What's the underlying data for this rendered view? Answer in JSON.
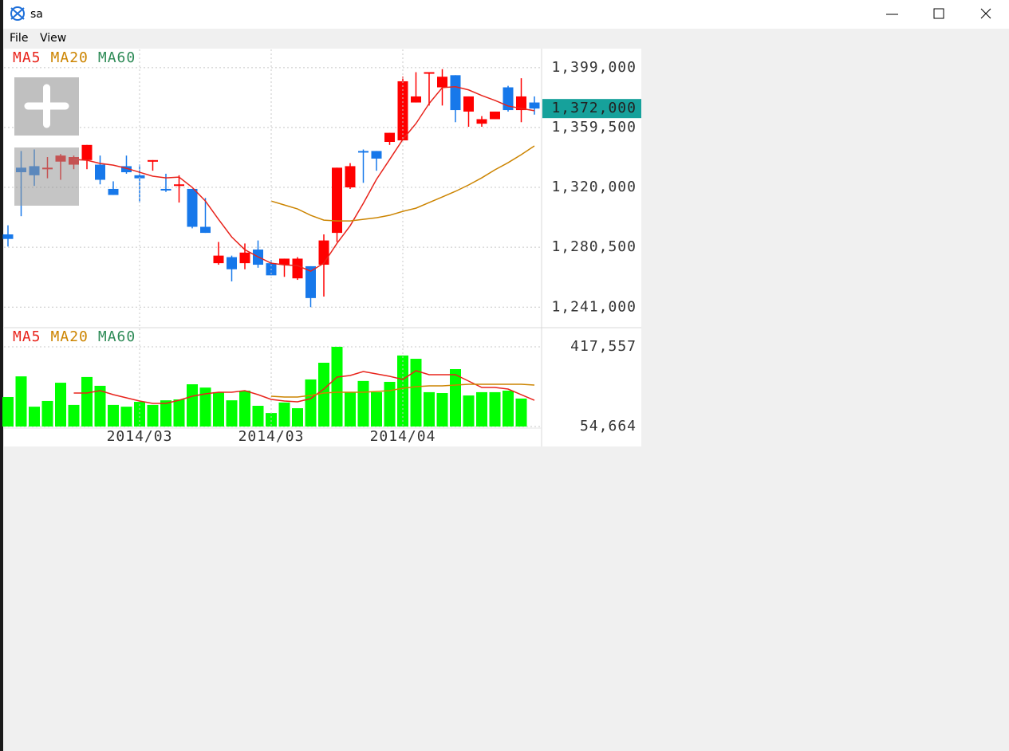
{
  "window": {
    "title": "sa",
    "menu": [
      "File",
      "View"
    ]
  },
  "chart_data": [
    {
      "type": "candlestick",
      "open": [
        1289000,
        1333000,
        1334000,
        1332000,
        1337000,
        1335000,
        1338000,
        1335000,
        1319000,
        1334000,
        1328000,
        1337000,
        1319000,
        1321000,
        1319000,
        1294000,
        1270000,
        1274000,
        1270000,
        1279000,
        1270000,
        1269000,
        1260000,
        1268000,
        1269000,
        1290000,
        1320000,
        1344000,
        1344000,
        1350000,
        1351000,
        1376000,
        1395000,
        1386000,
        1394000,
        1370000,
        1362000,
        1365000,
        1386000,
        1371000,
        1376000
      ],
      "high": [
        1295000,
        1344000,
        1345000,
        1340000,
        1342000,
        1341000,
        1348000,
        1341000,
        1324000,
        1341000,
        1335000,
        1338000,
        1329000,
        1328000,
        1319000,
        1313000,
        1284000,
        1275000,
        1283000,
        1285000,
        1272000,
        1273000,
        1274000,
        1268000,
        1289000,
        1333000,
        1336000,
        1345000,
        1344000,
        1356000,
        1393000,
        1396000,
        1396000,
        1398000,
        1394000,
        1380000,
        1367000,
        1370000,
        1387000,
        1392000,
        1380000
      ],
      "low": [
        1281000,
        1301000,
        1321000,
        1326000,
        1325000,
        1332000,
        1332000,
        1322000,
        1315000,
        1329000,
        1310000,
        1331000,
        1317000,
        1310000,
        1293000,
        1290000,
        1269000,
        1258000,
        1266000,
        1267000,
        1262000,
        1261000,
        1259000,
        1241000,
        1248000,
        1284000,
        1319000,
        1323000,
        1331000,
        1348000,
        1351000,
        1376000,
        1374000,
        1374000,
        1363000,
        1360000,
        1360000,
        1365000,
        1370000,
        1363000,
        1368000
      ],
      "close": [
        1286000,
        1330000,
        1328000,
        1333000,
        1341000,
        1340000,
        1348000,
        1325000,
        1315000,
        1330000,
        1326000,
        1338000,
        1318000,
        1322000,
        1294000,
        1290000,
        1275000,
        1266000,
        1277000,
        1269000,
        1262000,
        1273000,
        1273000,
        1247000,
        1285000,
        1333000,
        1334000,
        1343000,
        1339000,
        1356000,
        1390000,
        1380000,
        1396000,
        1393000,
        1371000,
        1380000,
        1365000,
        1370000,
        1371000,
        1380000,
        1372000
      ],
      "up_color": "#ff0000",
      "down_color": "#1778ea",
      "series": [
        {
          "name": "MA5",
          "color": "#e8231b",
          "values": [
            null,
            null,
            null,
            null,
            null,
            1338400,
            1337900,
            1335800,
            1334700,
            1332600,
            1330000,
            1327400,
            1326300,
            1326800,
            1320000,
            1311000,
            1298900,
            1287300,
            1278900,
            1274200,
            1270000,
            1268900,
            1268400,
            1264700,
            1270000,
            1283100,
            1294700,
            1309500,
            1325300,
            1338400,
            1351600,
            1362100,
            1375300,
            1385800,
            1386400,
            1384300,
            1380600,
            1377400,
            1373700,
            1372100,
            1370600
          ]
        },
        {
          "name": "MA20",
          "color": "#cc8400",
          "values": [
            null,
            null,
            null,
            null,
            null,
            null,
            null,
            null,
            null,
            null,
            null,
            null,
            null,
            null,
            null,
            null,
            null,
            null,
            null,
            null,
            1311000,
            1308400,
            1305800,
            1301600,
            1298400,
            1297900,
            1297900,
            1298900,
            1300000,
            1301600,
            1304200,
            1306300,
            1310000,
            1313700,
            1317400,
            1321600,
            1326300,
            1331600,
            1336300,
            1341600,
            1347400
          ]
        },
        {
          "name": "MA60",
          "color": "#2e8b57",
          "values": [
            null,
            null,
            null,
            null,
            null,
            null,
            null,
            null,
            null,
            null,
            null,
            null,
            null,
            null,
            null,
            null,
            null,
            null,
            null,
            null,
            null,
            null,
            null,
            null,
            null,
            null,
            null,
            null,
            null,
            null,
            null,
            null,
            null,
            null,
            null,
            null,
            null,
            null,
            null,
            null,
            null
          ]
        }
      ],
      "ylim": [
        1228000,
        1411000
      ],
      "yticks": [
        {
          "value": 1241000,
          "label": "1,241,000"
        },
        {
          "value": 1280500,
          "label": "1,280,500"
        },
        {
          "value": 1320000,
          "label": "1,320,000"
        },
        {
          "value": 1359500,
          "label": "1,359,500"
        },
        {
          "value": 1399000,
          "label": "1,399,000"
        }
      ],
      "grid": true,
      "last_price": {
        "value": 1372000,
        "label": "1,372,000"
      },
      "last_price_color": "#16a19b"
    },
    {
      "type": "bar",
      "categories": [
        null,
        null,
        null,
        null,
        null,
        null,
        null,
        null,
        null,
        null,
        "2014/03",
        null,
        null,
        null,
        null,
        null,
        null,
        null,
        null,
        null,
        "2014/03",
        null,
        null,
        null,
        null,
        null,
        null,
        null,
        null,
        null,
        "2014/04",
        null,
        null,
        null,
        null,
        null,
        null,
        null,
        null,
        null,
        null
      ],
      "values": [
        189000,
        283000,
        145000,
        171000,
        254000,
        153000,
        280000,
        240000,
        153000,
        145000,
        167000,
        153000,
        174000,
        178000,
        247000,
        232000,
        211000,
        174000,
        218000,
        149000,
        116000,
        164000,
        138000,
        269000,
        345000,
        417557,
        211000,
        262000,
        211000,
        258000,
        378000,
        363000,
        211000,
        207000,
        316000,
        196000,
        211000,
        211000,
        218000,
        182000,
        54664
      ],
      "color": "#00ff00",
      "series": [
        {
          "name": "MA5",
          "color": "#e8231b",
          "values": [
            null,
            null,
            null,
            null,
            null,
            207100,
            207100,
            218000,
            199800,
            185300,
            170800,
            159900,
            159900,
            174400,
            192600,
            203500,
            210700,
            210700,
            218000,
            199800,
            178100,
            170800,
            167200,
            181700,
            225200,
            279700,
            286900,
            305100,
            294200,
            283300,
            268800,
            308700,
            290500,
            290500,
            290500,
            261500,
            232500,
            232500,
            225200,
            199800,
            174400
          ]
        },
        {
          "name": "MA20",
          "color": "#cc8400",
          "values": [
            null,
            null,
            null,
            null,
            null,
            null,
            null,
            null,
            null,
            null,
            null,
            null,
            null,
            null,
            null,
            null,
            null,
            null,
            null,
            null,
            192600,
            188900,
            188900,
            196200,
            207100,
            210700,
            210700,
            210700,
            214300,
            218000,
            228900,
            236100,
            239700,
            239700,
            243400,
            247000,
            247000,
            247000,
            247000,
            247000,
            243400
          ]
        },
        {
          "name": "MA60",
          "color": "#2e8b57",
          "values": [
            null,
            null,
            null,
            null,
            null,
            null,
            null,
            null,
            null,
            null,
            null,
            null,
            null,
            null,
            null,
            null,
            null,
            null,
            null,
            null,
            null,
            null,
            null,
            null,
            null,
            null,
            null,
            null,
            null,
            null,
            null,
            null,
            null,
            null,
            null,
            null,
            null,
            null,
            null,
            null,
            null
          ]
        }
      ],
      "ylim": [
        54664,
        417557
      ],
      "yticks": [
        {
          "value": 54664,
          "label": "54,664"
        },
        {
          "value": 417557,
          "label": "417,557"
        }
      ],
      "grid": true
    }
  ]
}
